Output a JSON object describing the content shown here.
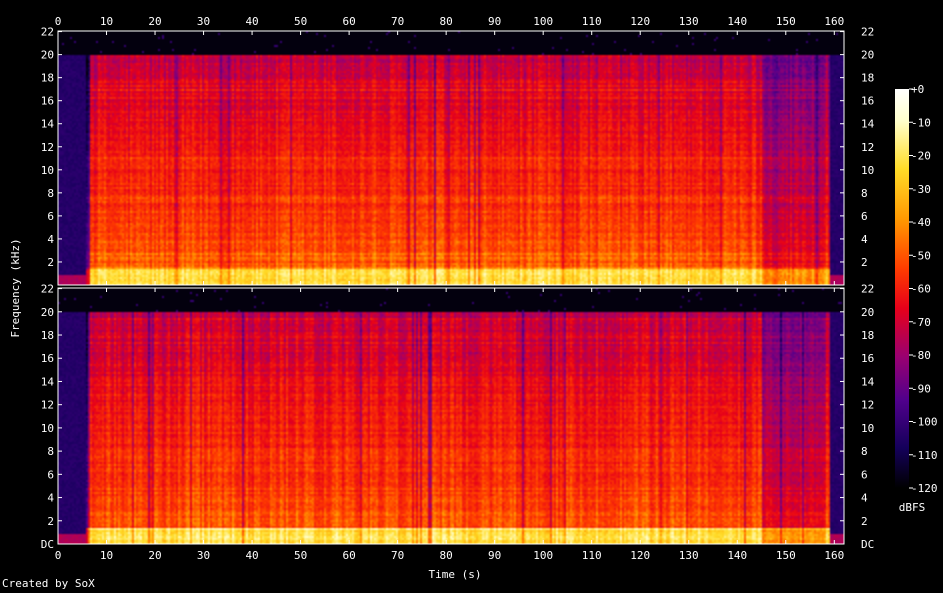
{
  "credit": "Created by SoX",
  "colorbar": {
    "unit": "dBFS",
    "ticks": [
      "+0",
      "-10",
      "-20",
      "-30",
      "-40",
      "-50",
      "-60",
      "-70",
      "-80",
      "-90",
      "-100",
      "-110",
      "-120"
    ],
    "tick_values": [
      0,
      -10,
      -20,
      -30,
      -40,
      -50,
      -60,
      -70,
      -80,
      -90,
      -100,
      -110,
      -120
    ]
  },
  "chart_data": {
    "type": "heatmap",
    "xlabel": "Time (s)",
    "ylabel": "Frequency (kHz)",
    "x_ticks": [
      "0",
      "10",
      "20",
      "30",
      "40",
      "50",
      "60",
      "70",
      "80",
      "90",
      "100",
      "110",
      "120",
      "130",
      "140",
      "150",
      "160"
    ],
    "x_tick_values": [
      0,
      10,
      20,
      30,
      40,
      50,
      60,
      70,
      80,
      90,
      100,
      110,
      120,
      130,
      140,
      150,
      160
    ],
    "xlim": [
      0,
      162
    ],
    "y_ticks_top": [
      "2",
      "4",
      "6",
      "8",
      "10",
      "12",
      "14",
      "16",
      "18",
      "20",
      "22"
    ],
    "y_tick_values_top": [
      2,
      4,
      6,
      8,
      10,
      12,
      14,
      16,
      18,
      20,
      22
    ],
    "y_ticks_bottom": [
      "DC",
      "2",
      "4",
      "6",
      "8",
      "10",
      "12",
      "14",
      "16",
      "18",
      "20",
      "22"
    ],
    "y_tick_values_bottom": [
      0,
      2,
      4,
      6,
      8,
      10,
      12,
      14,
      16,
      18,
      20,
      22
    ],
    "ylim": [
      0,
      22.05
    ],
    "zlim": [
      -120,
      0
    ],
    "channels": 2,
    "lowpass_cutoff_khz": 20,
    "signal_start_s": 6.5,
    "signal_end_s": 159,
    "quiet_sections_s": [
      [
        145,
        158
      ]
    ],
    "colormap": [
      "#000000",
      "#14005a",
      "#50008c",
      "#9a0070",
      "#e6001a",
      "#ff3c00",
      "#ff9600",
      "#ffdc28",
      "#ffffcc"
    ]
  }
}
